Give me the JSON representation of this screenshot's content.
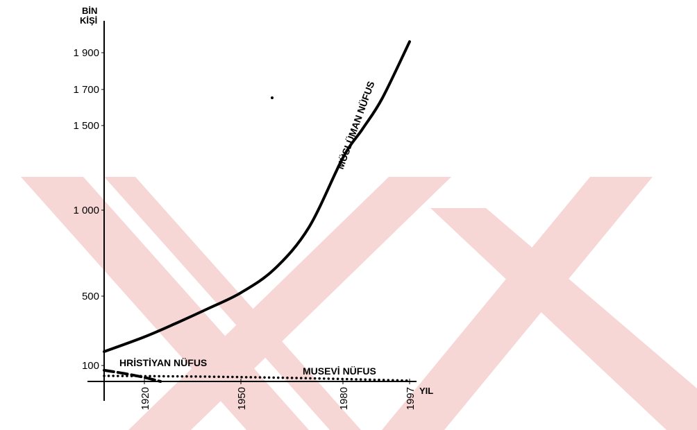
{
  "chart_data": {
    "type": "line",
    "title": "",
    "ylabel_line1": "BİN",
    "ylabel_line2": "KİŞİ",
    "xlabel": "YIL",
    "y_ticks": [
      100,
      500,
      1000,
      1500,
      1700,
      1900
    ],
    "y_tick_labels": [
      "100",
      "500",
      "1 000",
      "1 500",
      "1 700",
      "1 900"
    ],
    "x_ticks": [
      1920,
      1950,
      1980,
      1997
    ],
    "x_tick_labels": [
      "1920",
      "1950",
      "1980",
      "1997"
    ],
    "xlim": [
      1910,
      2000
    ],
    "ylim": [
      0,
      2100
    ],
    "grid": false,
    "legend": "none",
    "series": [
      {
        "name": "MÜSLÜMAN NÜFUS",
        "style": "solid",
        "color": "#000000",
        "x": [
          1910,
          1920,
          1930,
          1940,
          1950,
          1960,
          1970,
          1980,
          1985,
          1990,
          1997
        ],
        "y": [
          180,
          265,
          345,
          430,
          520,
          660,
          900,
          1310,
          1480,
          1650,
          1960
        ]
      },
      {
        "name": "HRİSTİYAN NÜFUS",
        "style": "dashed",
        "color": "#000000",
        "x": [
          1910,
          1915,
          1920,
          1925
        ],
        "y": [
          70,
          50,
          25,
          0
        ]
      },
      {
        "name": "MUSEVİ NÜFUS",
        "style": "dotted",
        "color": "#000000",
        "x": [
          1910,
          1940,
          1970,
          1997
        ],
        "y": [
          35,
          30,
          20,
          5
        ]
      }
    ]
  },
  "watermark_color": "#f7d6d6"
}
